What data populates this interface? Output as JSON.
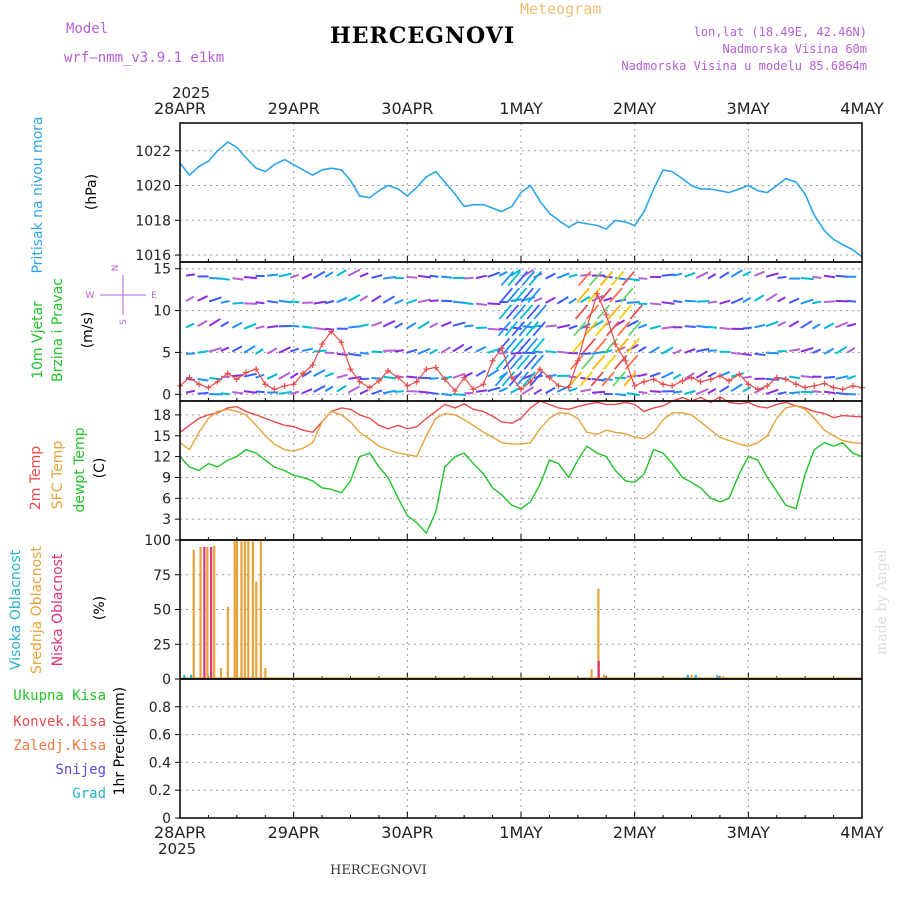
{
  "header": {
    "model_label": "Model",
    "model_name": "wrf—nmm_v3.9.1  e1km",
    "title": "HERCEGNOVI",
    "subtitle": "Meteogram",
    "lonlat": "lon,lat (18.49E, 42.46N)",
    "altitude": "Nadmorska Visina 60m",
    "model_altitude": "Nadmorska Visina u modelu 85.6864m"
  },
  "footer": {
    "station": "HERCEGNOVI",
    "credit": "made by Angel"
  },
  "colors": {
    "pressure": "#2ba6ec",
    "temp2m": "#ec4a4a",
    "sfc_temp": "#e8a23a",
    "dewpt": "#22c42a",
    "high_cloud": "#26b3c9",
    "mid_cloud": "#e8a23a",
    "low_cloud": "#e0307a",
    "purple": "#b560d6",
    "wind_speed": "#e84d4d"
  },
  "chart_data": [
    {
      "type": "line",
      "name": "pressure",
      "ylabel_parts": [
        "Pritisak na nivou mora",
        "(hPa)"
      ],
      "ylim": [
        1015.6,
        1023.6
      ],
      "yticks": [
        "1016",
        "1018",
        "1020",
        "1022"
      ],
      "x_days": [
        0,
        0.083,
        0.167,
        0.25,
        0.33,
        0.42,
        0.5,
        0.58,
        0.67,
        0.75,
        0.83,
        0.92,
        1.0,
        1.083,
        1.167,
        1.25,
        1.33,
        1.42,
        1.5,
        1.58,
        1.67,
        1.75,
        1.83,
        1.92,
        2.0,
        2.083,
        2.167,
        2.25,
        2.33,
        2.42,
        2.5,
        2.58,
        2.67,
        2.75,
        2.83,
        2.92,
        3.0,
        3.083,
        3.167,
        3.25,
        3.33,
        3.42,
        3.5,
        3.58,
        3.67,
        3.75,
        3.83,
        3.92,
        4.0,
        4.083,
        4.167,
        4.25,
        4.33,
        4.42,
        4.5,
        4.58,
        4.67,
        4.75,
        4.83,
        4.92,
        5.0,
        5.083,
        5.167,
        5.25,
        5.33,
        5.42,
        5.5,
        5.58,
        5.67,
        5.75,
        5.83,
        5.92,
        6.0
      ],
      "values": [
        1021.3,
        1020.6,
        1021.1,
        1021.4,
        1022.0,
        1022.5,
        1022.2,
        1021.6,
        1021.0,
        1020.8,
        1021.2,
        1021.5,
        1021.2,
        1020.9,
        1020.6,
        1020.9,
        1021.0,
        1020.9,
        1020.3,
        1019.4,
        1019.3,
        1019.7,
        1020.0,
        1019.8,
        1019.4,
        1019.9,
        1020.5,
        1020.8,
        1020.2,
        1019.5,
        1018.8,
        1018.9,
        1018.9,
        1018.7,
        1018.5,
        1018.8,
        1019.6,
        1020.0,
        1019.1,
        1018.4,
        1018.0,
        1017.6,
        1017.9,
        1017.8,
        1017.7,
        1017.5,
        1018.0,
        1017.9,
        1017.7,
        1018.5,
        1019.8,
        1020.9,
        1020.8,
        1020.4,
        1020.0,
        1019.8,
        1019.8,
        1019.7,
        1019.6,
        1019.8,
        1020.0,
        1019.7,
        1019.6,
        1020.0,
        1020.4,
        1020.2,
        1019.5,
        1018.3,
        1017.4,
        1016.9,
        1016.6,
        1016.3,
        1015.9
      ]
    },
    {
      "type": "line",
      "name": "wind",
      "ylabel_parts": [
        "10m Vjetar",
        "Brzina i Pravac",
        "(m/s)"
      ],
      "compass": {
        "n": "N",
        "w": "W",
        "e": "E",
        "s": "S"
      },
      "ylim": [
        -0.8,
        15.8
      ],
      "yticks": [
        "0",
        "5",
        "10",
        "15"
      ],
      "x_days": [
        0,
        0.083,
        0.167,
        0.25,
        0.33,
        0.42,
        0.5,
        0.58,
        0.67,
        0.75,
        0.83,
        0.92,
        1.0,
        1.083,
        1.167,
        1.25,
        1.33,
        1.42,
        1.5,
        1.58,
        1.67,
        1.75,
        1.83,
        1.92,
        2.0,
        2.083,
        2.167,
        2.25,
        2.33,
        2.42,
        2.5,
        2.58,
        2.67,
        2.75,
        2.83,
        2.92,
        3.0,
        3.083,
        3.167,
        3.25,
        3.33,
        3.42,
        3.5,
        3.58,
        3.67,
        3.75,
        3.83,
        3.92,
        4.0,
        4.083,
        4.167,
        4.25,
        4.33,
        4.42,
        4.5,
        4.58,
        4.67,
        4.75,
        4.83,
        4.92,
        5.0,
        5.083,
        5.167,
        5.25,
        5.33,
        5.42,
        5.5,
        5.58,
        5.67,
        5.75,
        5.83,
        5.92,
        6.0
      ],
      "speed": [
        1.0,
        2.0,
        1.2,
        0.8,
        1.5,
        2.5,
        1.8,
        2.6,
        3.0,
        1.2,
        0.6,
        1.0,
        1.2,
        2.5,
        3.5,
        6.0,
        7.5,
        6.2,
        3.0,
        1.5,
        0.8,
        1.6,
        2.8,
        2.0,
        1.0,
        1.5,
        3.0,
        3.2,
        1.8,
        0.4,
        2.0,
        0.6,
        1.2,
        4.0,
        5.5,
        2.0,
        0.6,
        1.5,
        3.0,
        2.0,
        1.0,
        0.8,
        4.0,
        8.0,
        12.0,
        9.5,
        6.0,
        4.0,
        1.0,
        1.5,
        1.8,
        1.2,
        1.0,
        1.6,
        2.0,
        1.5,
        1.8,
        2.2,
        1.6,
        2.4,
        1.2,
        0.6,
        1.0,
        2.0,
        1.8,
        1.2,
        0.8,
        1.0,
        1.3,
        0.8,
        0.6,
        1.0,
        0.8
      ]
    },
    {
      "type": "line",
      "name": "temperature",
      "ylabel_parts": [
        "2m Temp",
        "SFC Temp",
        "dewpt Temp",
        "(C)"
      ],
      "ylim": [
        0,
        20
      ],
      "yticks": [
        "0",
        "3",
        "6",
        "9",
        "12",
        "15",
        "18"
      ],
      "x_days": [
        0,
        0.083,
        0.167,
        0.25,
        0.33,
        0.42,
        0.5,
        0.58,
        0.67,
        0.75,
        0.83,
        0.92,
        1.0,
        1.083,
        1.167,
        1.25,
        1.33,
        1.42,
        1.5,
        1.58,
        1.67,
        1.75,
        1.83,
        1.92,
        2.0,
        2.083,
        2.167,
        2.25,
        2.33,
        2.42,
        2.5,
        2.58,
        2.67,
        2.75,
        2.83,
        2.92,
        3.0,
        3.083,
        3.167,
        3.25,
        3.33,
        3.42,
        3.5,
        3.58,
        3.67,
        3.75,
        3.83,
        3.92,
        4.0,
        4.083,
        4.167,
        4.25,
        4.33,
        4.42,
        4.5,
        4.58,
        4.67,
        4.75,
        4.83,
        4.92,
        5.0,
        5.083,
        5.167,
        5.25,
        5.33,
        5.42,
        5.5,
        5.58,
        5.67,
        5.75,
        5.83,
        5.92,
        6.0
      ],
      "series": [
        {
          "name": "2m Temp",
          "values": [
            15.5,
            16.5,
            17.5,
            18.0,
            18.3,
            19.0,
            19.2,
            18.5,
            18.0,
            17.5,
            17.0,
            16.5,
            16.3,
            15.8,
            15.5,
            17.0,
            18.5,
            19.0,
            18.8,
            18.0,
            17.5,
            16.5,
            16.0,
            16.5,
            16.0,
            16.3,
            17.5,
            18.5,
            19.5,
            19.0,
            19.6,
            18.8,
            18.5,
            17.8,
            17.0,
            16.8,
            17.5,
            19.0,
            20.0,
            19.5,
            19.0,
            18.8,
            19.2,
            19.5,
            19.8,
            19.5,
            19.5,
            19.8,
            19.5,
            18.5,
            19.0,
            19.3,
            20.0,
            20.5,
            20.0,
            20.5,
            19.8,
            20.6,
            19.8,
            19.6,
            19.8,
            19.2,
            19.0,
            19.5,
            19.8,
            19.3,
            19.0,
            18.5,
            18.2,
            17.6,
            17.9,
            17.8,
            17.7
          ]
        },
        {
          "name": "SFC Temp",
          "values": [
            14.0,
            13.0,
            15.5,
            17.5,
            18.5,
            18.8,
            18.5,
            18.0,
            16.5,
            15.0,
            13.8,
            13.0,
            12.8,
            13.2,
            14.0,
            17.0,
            18.5,
            18.0,
            17.0,
            15.5,
            14.5,
            13.5,
            13.0,
            12.5,
            12.3,
            12.0,
            15.0,
            17.5,
            18.2,
            18.0,
            17.3,
            16.5,
            15.5,
            14.8,
            14.0,
            13.8,
            13.8,
            14.0,
            16.0,
            17.5,
            18.3,
            18.2,
            17.5,
            15.5,
            15.2,
            15.8,
            15.5,
            15.3,
            14.8,
            14.6,
            15.5,
            17.3,
            18.3,
            18.3,
            18.0,
            17.0,
            15.8,
            14.8,
            14.3,
            13.8,
            13.5,
            14.0,
            15.0,
            17.5,
            19.0,
            19.3,
            18.8,
            17.5,
            15.8,
            15.0,
            14.3,
            14.0,
            13.9
          ]
        },
        {
          "name": "dewpt Temp",
          "values": [
            12.0,
            10.5,
            10.0,
            11.0,
            10.5,
            11.5,
            12.0,
            13.0,
            12.5,
            11.5,
            10.5,
            10.0,
            9.3,
            9.0,
            8.5,
            7.5,
            7.3,
            6.8,
            8.5,
            12.0,
            12.5,
            10.5,
            9.0,
            6.0,
            3.5,
            2.5,
            1.0,
            4.0,
            10.5,
            12.0,
            12.5,
            11.0,
            9.5,
            7.5,
            6.5,
            5.0,
            4.5,
            5.5,
            8.0,
            11.5,
            11.0,
            9.0,
            11.5,
            13.5,
            12.5,
            12.0,
            10.0,
            8.5,
            8.3,
            9.5,
            13.0,
            12.5,
            11.0,
            9.0,
            8.3,
            7.5,
            6.0,
            5.5,
            6.0,
            9.5,
            12.0,
            11.5,
            9.0,
            7.0,
            5.0,
            4.5,
            9.5,
            13.0,
            14.0,
            13.5,
            14.0,
            12.5,
            12.0
          ]
        }
      ]
    },
    {
      "type": "bar",
      "name": "clouds",
      "ylabel_parts": [
        "Visoka Oblacnost",
        "Srednja Oblacnost",
        "Niska Oblacnost",
        "(%)"
      ],
      "ylim": [
        0,
        100
      ],
      "yticks": [
        "0",
        "25",
        "50",
        "75",
        "100"
      ],
      "series": [
        {
          "name": "Visoka Oblacnost",
          "x_days": [
            0.05,
            0.11,
            4.48,
            4.55,
            4.74
          ],
          "values": [
            3,
            3,
            3,
            3,
            3
          ]
        },
        {
          "name": "Srednja Oblacnost",
          "x_days": [
            0.12,
            0.18,
            0.24,
            0.3,
            0.36,
            0.42,
            0.48,
            0.5,
            0.54,
            0.57,
            0.6,
            0.64,
            0.67,
            0.71,
            0.75,
            3.62,
            3.68,
            3.73,
            4.5,
            4.78
          ],
          "values": [
            93,
            95,
            95,
            96,
            8,
            52,
            100,
            100,
            99,
            100,
            100,
            99,
            70,
            100,
            8,
            7,
            65,
            3,
            3,
            2
          ]
        },
        {
          "name": "Niska Oblacnost",
          "x_days": [
            0.2,
            0.26,
            3.67
          ],
          "values": [
            95,
            95,
            13
          ]
        }
      ]
    },
    {
      "type": "line",
      "name": "precipitation",
      "ylabel_parts": [
        "1hr Precip",
        "(mm)"
      ],
      "ylim": [
        0,
        1.0
      ],
      "yticks": [
        "0",
        "0.2",
        "0.4",
        "0.6",
        "0.8"
      ],
      "legend": [
        "Ukupna Kisa",
        "Konvek.Kisa",
        "Zaledj.Kisa",
        "Snijeg",
        "Grad"
      ],
      "values": [
        0,
        0,
        0,
        0,
        0,
        0,
        0
      ]
    }
  ],
  "x_axis": {
    "year": "2025",
    "labels": [
      "28APR",
      "29APR",
      "30APR",
      "1MAY",
      "2MAY",
      "3MAY",
      "4MAY"
    ]
  }
}
